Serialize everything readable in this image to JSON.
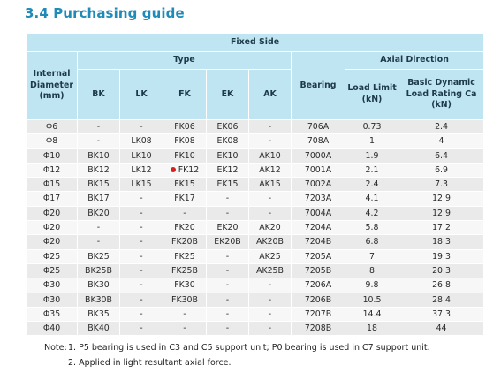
{
  "section": {
    "title": "3.4  Purchasing guide"
  },
  "table": {
    "group_header": "Fixed Side",
    "internal_diameter_label": "Internal Diameter (mm)",
    "type_label": "Type",
    "bearing_label": "Bearing",
    "axial_label": "Axial  Direction",
    "type_columns": [
      "BK",
      "LK",
      "FK",
      "EK",
      "AK"
    ],
    "load_limit_label": "Load Limit (kN)",
    "dynamic_label": "Basic Dynamic Load Rating Ca (kN)",
    "highlight_row": 3,
    "highlight_color": "#d62020",
    "header_color": "#bfe4f2",
    "rows": [
      {
        "d": "Φ6",
        "bk": "-",
        "lk": "-",
        "fk": "FK06",
        "ek": "EK06",
        "ak": "-",
        "bearing": "706A",
        "load": "0.73",
        "dyn": "2.4"
      },
      {
        "d": "Φ8",
        "bk": "-",
        "lk": "LK08",
        "fk": "FK08",
        "ek": "EK08",
        "ak": "-",
        "bearing": "708A",
        "load": "1",
        "dyn": "4"
      },
      {
        "d": "Φ10",
        "bk": "BK10",
        "lk": "LK10",
        "fk": "FK10",
        "ek": "EK10",
        "ak": "AK10",
        "bearing": "7000A",
        "load": "1.9",
        "dyn": "6.4"
      },
      {
        "d": "Φ12",
        "bk": "BK12",
        "lk": "LK12",
        "fk": "FK12",
        "ek": "EK12",
        "ak": "AK12",
        "bearing": "7001A",
        "load": "2.1",
        "dyn": "6.9"
      },
      {
        "d": "Φ15",
        "bk": "BK15",
        "lk": "LK15",
        "fk": "FK15",
        "ek": "EK15",
        "ak": "AK15",
        "bearing": "7002A",
        "load": "2.4",
        "dyn": "7.3"
      },
      {
        "d": "Φ17",
        "bk": "BK17",
        "lk": "-",
        "fk": "FK17",
        "ek": "-",
        "ak": "-",
        "bearing": "7203A",
        "load": "4.1",
        "dyn": "12.9"
      },
      {
        "d": "Φ20",
        "bk": "BK20",
        "lk": "-",
        "fk": "-",
        "ek": "-",
        "ak": "-",
        "bearing": "7004A",
        "load": "4.2",
        "dyn": "12.9"
      },
      {
        "d": "Φ20",
        "bk": "-",
        "lk": "-",
        "fk": "FK20",
        "ek": "EK20",
        "ak": "AK20",
        "bearing": "7204A",
        "load": "5.8",
        "dyn": "17.2"
      },
      {
        "d": "Φ20",
        "bk": "-",
        "lk": "-",
        "fk": "FK20B",
        "ek": "EK20B",
        "ak": "AK20B",
        "bearing": "7204B",
        "load": "6.8",
        "dyn": "18.3"
      },
      {
        "d": "Φ25",
        "bk": "BK25",
        "lk": "-",
        "fk": "FK25",
        "ek": "-",
        "ak": "AK25",
        "bearing": "7205A",
        "load": "7",
        "dyn": "19.3"
      },
      {
        "d": "Φ25",
        "bk": "BK25B",
        "lk": "-",
        "fk": "FK25B",
        "ek": "-",
        "ak": "AK25B",
        "bearing": "7205B",
        "load": "8",
        "dyn": "20.3"
      },
      {
        "d": "Φ30",
        "bk": "BK30",
        "lk": "-",
        "fk": "FK30",
        "ek": "-",
        "ak": "-",
        "bearing": "7206A",
        "load": "9.8",
        "dyn": "26.8"
      },
      {
        "d": "Φ30",
        "bk": "BK30B",
        "lk": "-",
        "fk": "FK30B",
        "ek": "-",
        "ak": "-",
        "bearing": "7206B",
        "load": "10.5",
        "dyn": "28.4"
      },
      {
        "d": "Φ35",
        "bk": "BK35",
        "lk": "-",
        "fk": "-",
        "ek": "-",
        "ak": "-",
        "bearing": "7207B",
        "load": "14.4",
        "dyn": "37.3"
      },
      {
        "d": "Φ40",
        "bk": "BK40",
        "lk": "-",
        "fk": "-",
        "ek": "-",
        "ak": "-",
        "bearing": "7208B",
        "load": "18",
        "dyn": "44"
      }
    ]
  },
  "notes": {
    "prefix": "Note:",
    "line1": "1. P5 bearing is used in C3 and C5 support unit; P0 bearing is used in C7 support unit.",
    "line2": "2. Applied in light resultant axial force."
  }
}
